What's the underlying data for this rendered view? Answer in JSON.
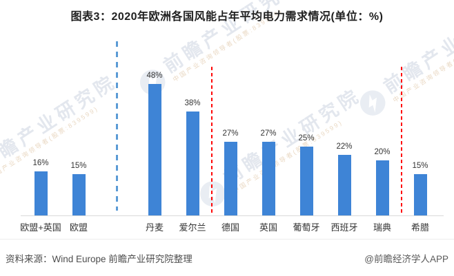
{
  "title": "图表3：2020年欧洲各国风能占年平均电力需求情况(单位：%)",
  "chart_data": {
    "type": "bar",
    "title": "图表3：2020年欧洲各国风能占年平均电力需求情况(单位：%)",
    "unit": "%",
    "categories": [
      "欧盟+英国",
      "欧盟",
      "丹麦",
      "爱尔兰",
      "德国",
      "英国",
      "葡萄牙",
      "西班牙",
      "瑞典",
      "希腊"
    ],
    "values": [
      16,
      15,
      48,
      38,
      27,
      27,
      25,
      22,
      20,
      15
    ],
    "data_labels": [
      "16%",
      "15%",
      "48%",
      "38%",
      "27%",
      "27%",
      "25%",
      "22%",
      "20%",
      "15%"
    ],
    "bar_color": "#3E84D6",
    "ylim": [
      0,
      50
    ],
    "grid": false,
    "legend": false,
    "dividers": [
      {
        "between": [
          "欧盟",
          "丹麦"
        ],
        "color": "#5B9BD5",
        "style": "dashed",
        "thickness": 3
      },
      {
        "between": [
          "爱尔兰",
          "德国"
        ],
        "color": "#FF0000",
        "style": "dashed",
        "thickness": 2
      },
      {
        "between": [
          "瑞典",
          "希腊"
        ],
        "color": "#FF0000",
        "style": "dashed",
        "thickness": 2
      }
    ]
  },
  "watermark": {
    "brand": "前瞻产业研究院",
    "tagline": "中国产业咨询领导者(股票:839599)",
    "logo": "qianzhan-logo"
  },
  "footer": {
    "source": "资料来源：Wind Europe 前瞻产业研究院整理",
    "credit": "@前瞻经济学人APP"
  }
}
